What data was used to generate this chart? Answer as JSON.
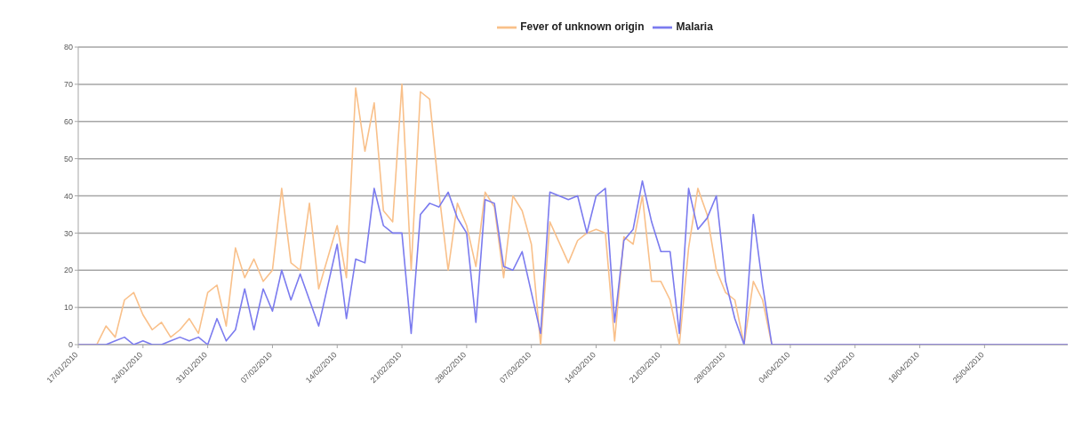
{
  "chart_data": {
    "type": "line",
    "xlim": [
      "2010-01-17",
      "2010-05-04"
    ],
    "xticks": [
      {
        "value": "2010-01-17",
        "label": "17/01/2010"
      },
      {
        "value": "2010-01-24",
        "label": "24/01/2010"
      },
      {
        "value": "2010-01-31",
        "label": "31/01/2010"
      },
      {
        "value": "2010-02-07",
        "label": "07/02/2010"
      },
      {
        "value": "2010-02-14",
        "label": "14/02/2010"
      },
      {
        "value": "2010-02-21",
        "label": "21/02/2010"
      },
      {
        "value": "2010-02-28",
        "label": "28/02/2010"
      },
      {
        "value": "2010-03-07",
        "label": "07/03/2010"
      },
      {
        "value": "2010-03-14",
        "label": "14/03/2010"
      },
      {
        "value": "2010-03-21",
        "label": "21/03/2010"
      },
      {
        "value": "2010-03-28",
        "label": "28/03/2010"
      },
      {
        "value": "2010-04-04",
        "label": "04/04/2010"
      },
      {
        "value": "2010-04-11",
        "label": "11/04/2010"
      },
      {
        "value": "2010-04-18",
        "label": "18/04/2010"
      },
      {
        "value": "2010-04-25",
        "label": "25/04/2010"
      }
    ],
    "ylim": [
      0,
      80
    ],
    "yticks": [
      0,
      10,
      20,
      30,
      40,
      50,
      60,
      70,
      80
    ],
    "grid": "y",
    "legend": "top",
    "marker": "none",
    "line_style": "solid",
    "series": [
      {
        "name": "Fever of unknown origin",
        "color": "#f9c08a",
        "x": [
          "2010-01-17",
          "2010-01-18",
          "2010-01-19",
          "2010-01-20",
          "2010-01-21",
          "2010-01-22",
          "2010-01-23",
          "2010-01-24",
          "2010-01-25",
          "2010-01-26",
          "2010-01-27",
          "2010-01-28",
          "2010-01-29",
          "2010-01-30",
          "2010-01-31",
          "2010-02-01",
          "2010-02-02",
          "2010-02-03",
          "2010-02-04",
          "2010-02-05",
          "2010-02-06",
          "2010-02-07",
          "2010-02-08",
          "2010-02-09",
          "2010-02-10",
          "2010-02-11",
          "2010-02-12",
          "2010-02-14",
          "2010-02-15",
          "2010-02-16",
          "2010-02-17",
          "2010-02-18",
          "2010-02-19",
          "2010-02-20",
          "2010-02-21",
          "2010-02-22",
          "2010-02-23",
          "2010-02-24",
          "2010-02-25",
          "2010-02-26",
          "2010-02-27",
          "2010-02-28",
          "2010-03-01",
          "2010-03-02",
          "2010-03-03",
          "2010-03-04",
          "2010-03-05",
          "2010-03-06",
          "2010-03-07",
          "2010-03-08",
          "2010-03-09",
          "2010-03-11",
          "2010-03-12",
          "2010-03-13",
          "2010-03-14",
          "2010-03-15",
          "2010-03-16",
          "2010-03-17",
          "2010-03-18",
          "2010-03-19",
          "2010-03-20",
          "2010-03-21",
          "2010-03-22",
          "2010-03-23",
          "2010-03-24",
          "2010-03-25",
          "2010-03-26",
          "2010-03-27",
          "2010-03-28",
          "2010-03-29",
          "2010-03-30",
          "2010-03-31",
          "2010-04-01",
          "2010-04-02",
          "2010-05-04"
        ],
        "values": [
          0,
          0,
          0,
          5,
          2,
          12,
          14,
          8,
          4,
          6,
          2,
          4,
          7,
          3,
          14,
          16,
          5,
          26,
          18,
          23,
          17,
          20,
          42,
          22,
          20,
          38,
          15,
          32,
          18,
          69,
          52,
          65,
          36,
          33,
          70,
          20,
          68,
          66,
          41,
          20,
          38,
          32,
          21,
          41,
          37,
          18,
          40,
          36,
          27,
          0,
          33,
          22,
          28,
          30,
          31,
          30,
          1,
          29,
          27,
          40,
          17,
          17,
          12,
          0,
          26,
          42,
          35,
          20,
          14,
          12,
          0,
          17,
          12,
          0,
          0
        ]
      },
      {
        "name": "Malaria",
        "color": "#7b7bef",
        "x": [
          "2010-01-17",
          "2010-01-18",
          "2010-01-19",
          "2010-01-20",
          "2010-01-21",
          "2010-01-22",
          "2010-01-23",
          "2010-01-24",
          "2010-01-25",
          "2010-01-26",
          "2010-01-27",
          "2010-01-28",
          "2010-01-29",
          "2010-01-30",
          "2010-01-31",
          "2010-02-01",
          "2010-02-02",
          "2010-02-03",
          "2010-02-04",
          "2010-02-05",
          "2010-02-06",
          "2010-02-07",
          "2010-02-08",
          "2010-02-09",
          "2010-02-10",
          "2010-02-11",
          "2010-02-12",
          "2010-02-14",
          "2010-02-15",
          "2010-02-16",
          "2010-02-17",
          "2010-02-18",
          "2010-02-19",
          "2010-02-20",
          "2010-02-21",
          "2010-02-22",
          "2010-02-23",
          "2010-02-24",
          "2010-02-25",
          "2010-02-26",
          "2010-02-27",
          "2010-02-28",
          "2010-03-01",
          "2010-03-02",
          "2010-03-03",
          "2010-03-04",
          "2010-03-05",
          "2010-03-06",
          "2010-03-07",
          "2010-03-08",
          "2010-03-09",
          "2010-03-11",
          "2010-03-12",
          "2010-03-13",
          "2010-03-14",
          "2010-03-15",
          "2010-03-16",
          "2010-03-17",
          "2010-03-18",
          "2010-03-19",
          "2010-03-20",
          "2010-03-21",
          "2010-03-22",
          "2010-03-23",
          "2010-03-24",
          "2010-03-25",
          "2010-03-26",
          "2010-03-27",
          "2010-03-28",
          "2010-03-29",
          "2010-03-30",
          "2010-03-31",
          "2010-04-01",
          "2010-04-02",
          "2010-05-04"
        ],
        "values": [
          0,
          0,
          0,
          0,
          1,
          2,
          0,
          1,
          0,
          0,
          1,
          2,
          1,
          2,
          0,
          7,
          1,
          4,
          15,
          4,
          15,
          9,
          20,
          12,
          19,
          12,
          5,
          27,
          7,
          23,
          22,
          42,
          32,
          30,
          30,
          3,
          35,
          38,
          37,
          41,
          34,
          30,
          6,
          39,
          38,
          21,
          20,
          25,
          14,
          3,
          41,
          39,
          40,
          30,
          40,
          42,
          6,
          28,
          31,
          44,
          33,
          25,
          25,
          3,
          42,
          31,
          34,
          40,
          17,
          7,
          0,
          35,
          16,
          0,
          0
        ]
      }
    ]
  }
}
